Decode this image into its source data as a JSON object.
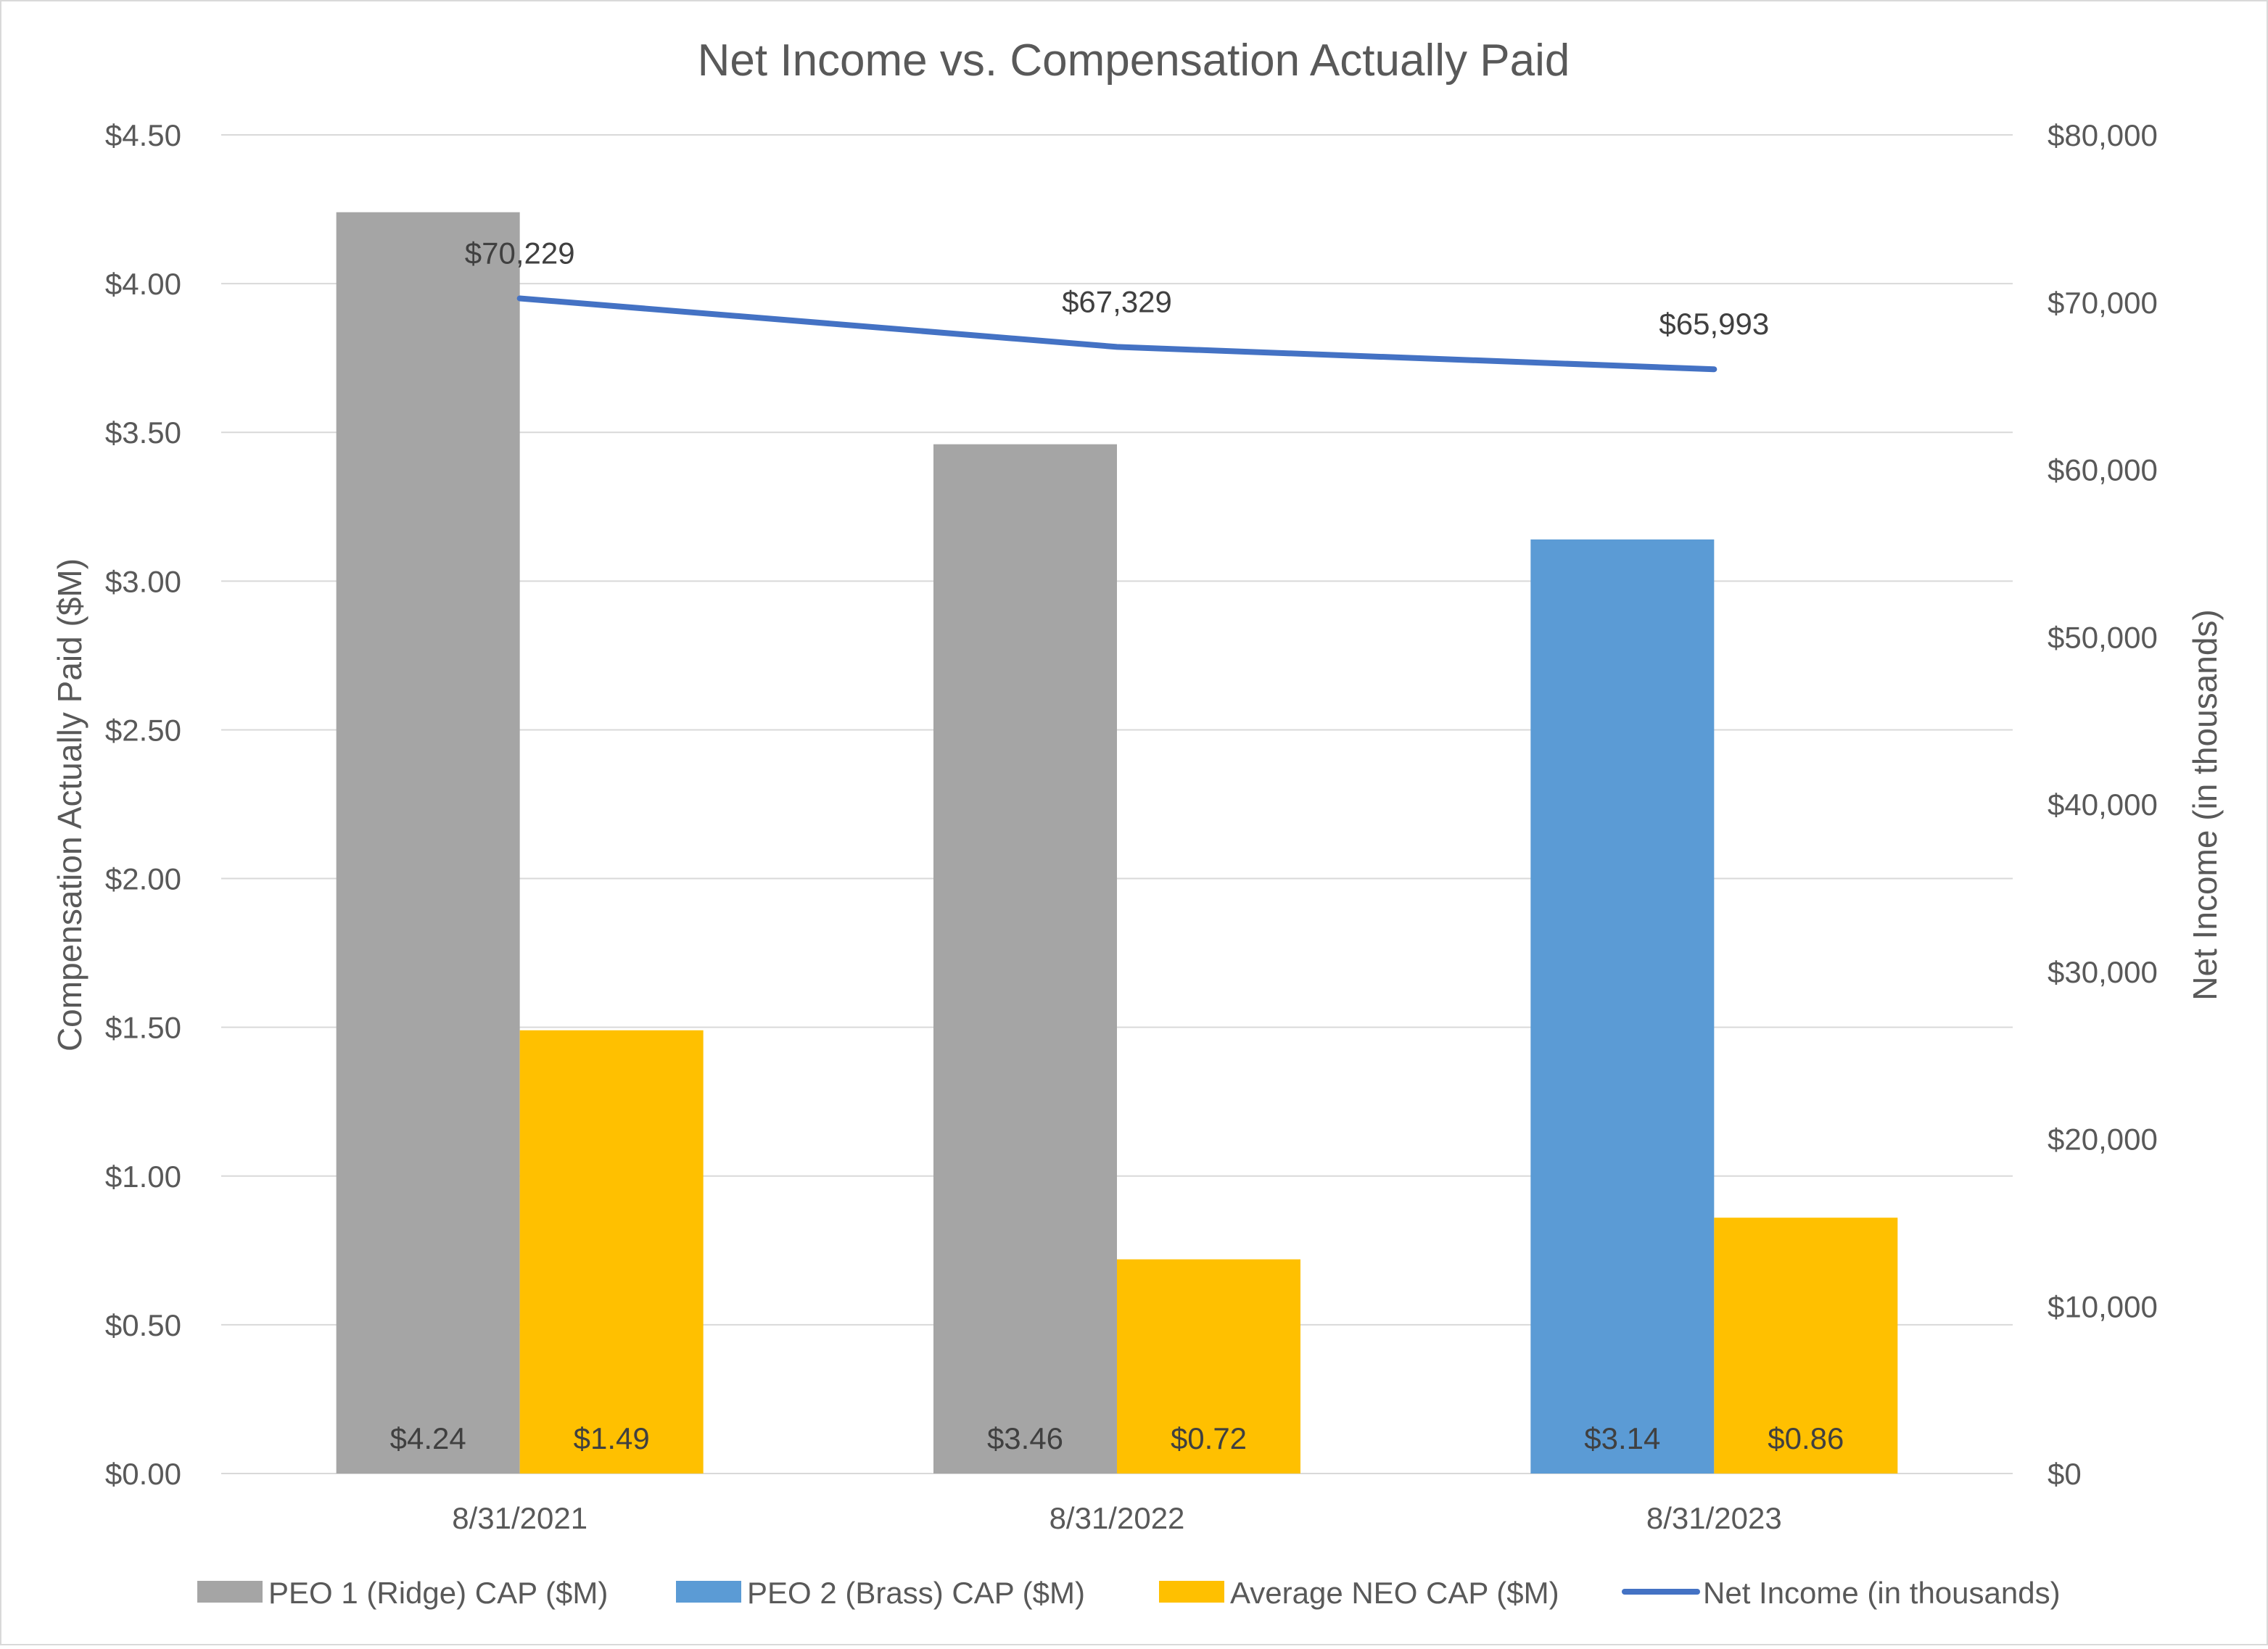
{
  "chart_data": {
    "type": "bar",
    "title": "Net Income vs. Compensation Actually Paid",
    "categories": [
      "8/31/2021",
      "8/31/2022",
      "8/31/2023"
    ],
    "ylabel": "Compensation Actually Paid ($M)",
    "y2label": "Net Income (in thousands)",
    "ylim": [
      0,
      4.5
    ],
    "y2lim": [
      0,
      80000
    ],
    "yticks": [
      "$0.00",
      "$0.50",
      "$1.00",
      "$1.50",
      "$2.00",
      "$2.50",
      "$3.00",
      "$3.50",
      "$4.00",
      "$4.50"
    ],
    "y2ticks": [
      "$0",
      "$10,000",
      "$20,000",
      "$30,000",
      "$40,000",
      "$50,000",
      "$60,000",
      "$70,000",
      "$80,000"
    ],
    "grid": true,
    "legend_position": "bottom",
    "series": [
      {
        "name": "PEO 1 (Ridge) CAP ($M)",
        "type": "bar",
        "axis": "left",
        "color": "#a5a5a5",
        "values": [
          4.24,
          3.46,
          null
        ],
        "labels": [
          "$4.24",
          "$3.46",
          ""
        ]
      },
      {
        "name": "PEO 2 (Brass) CAP ($M)",
        "type": "bar",
        "axis": "left",
        "color": "#5b9bd5",
        "values": [
          null,
          null,
          3.14
        ],
        "labels": [
          "",
          "",
          "$3.14"
        ]
      },
      {
        "name": "Average NEO CAP ($M)",
        "type": "bar",
        "axis": "left",
        "color": "#ffc000",
        "values": [
          1.49,
          0.72,
          0.86
        ],
        "labels": [
          "$1.49",
          "$0.72",
          "$0.86"
        ]
      },
      {
        "name": "Net Income (in thousands)",
        "type": "line",
        "axis": "right",
        "color": "#4472c4",
        "values": [
          70229,
          67329,
          65993
        ],
        "labels": [
          "$70,229",
          "$67,329",
          "$65,993"
        ]
      }
    ]
  }
}
